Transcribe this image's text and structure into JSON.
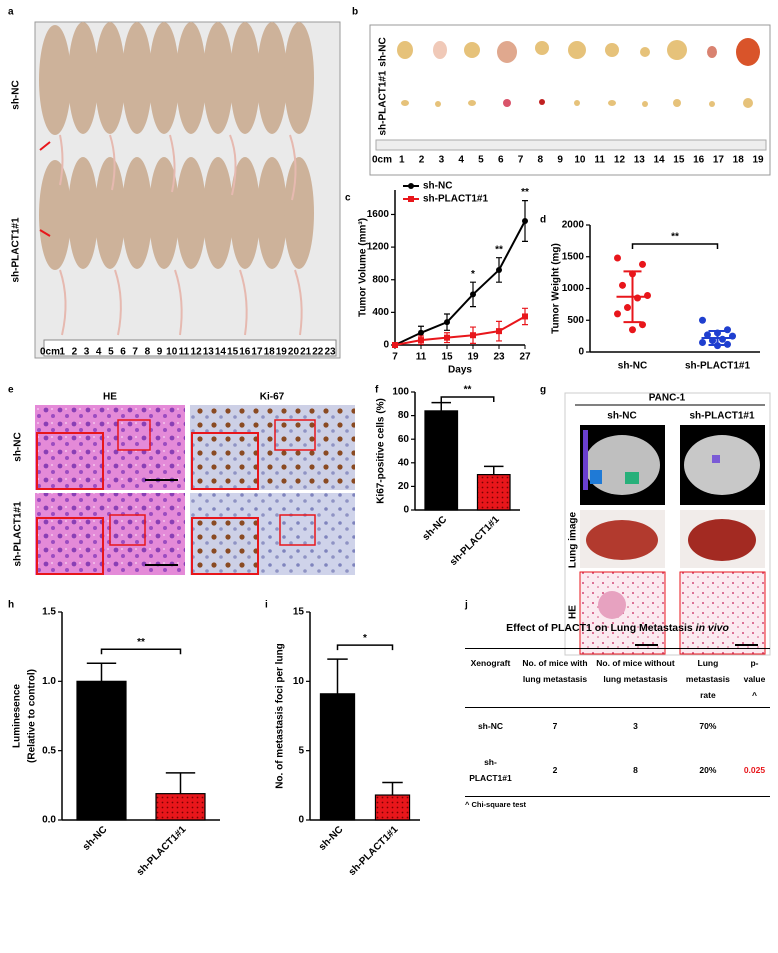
{
  "panel_labels": [
    "a",
    "b",
    "c",
    "d",
    "e",
    "f",
    "g",
    "h",
    "i",
    "j"
  ],
  "panel_a": {
    "groups": [
      "sh-NC",
      "sh-PLACT1#1"
    ],
    "ruler": [
      "0cm",
      "1",
      "2",
      "3",
      "4",
      "5",
      "6",
      "7",
      "8",
      "9",
      "10",
      "11",
      "12",
      "13",
      "14",
      "15",
      "16",
      "17",
      "18",
      "19",
      "20",
      "21",
      "22",
      "23"
    ]
  },
  "panel_b": {
    "groups": [
      "sh-NC",
      "sh-PLACT1#1"
    ],
    "ruler": [
      "0cm",
      "1",
      "2",
      "3",
      "4",
      "5",
      "6",
      "7",
      "8",
      "9",
      "10",
      "11",
      "12",
      "13",
      "14",
      "15",
      "16",
      "17",
      "18",
      "19"
    ]
  },
  "panel_e": {
    "columns": [
      "HE",
      "Ki-67"
    ],
    "groups": [
      "sh-NC",
      "sh-PLACT1#1"
    ]
  },
  "panel_g": {
    "title": "PANC-1",
    "columns": [
      "sh-NC",
      "sh-PLACT1#1"
    ],
    "rows": [
      "Lung image",
      "HE"
    ]
  },
  "chart_data": [
    {
      "type": "line",
      "xlabel": "Days",
      "ylabel": "Tumor Volume (mm³)",
      "x": [
        7,
        11,
        15,
        19,
        23,
        27
      ],
      "xlim": [
        7,
        27
      ],
      "xticks": [
        7,
        11,
        15,
        19,
        23,
        27
      ],
      "ylim": [
        0,
        1900
      ],
      "yticks": [
        0,
        400,
        800,
        1200,
        1600
      ],
      "legend": "upper left",
      "series": [
        {
          "name": "sh-NC",
          "color": "#000000",
          "marker": "circle",
          "values": [
            0,
            150,
            280,
            620,
            920,
            1520
          ],
          "errors": [
            0,
            80,
            100,
            150,
            150,
            250
          ]
        },
        {
          "name": "sh-PLACT1#1",
          "color": "#e8161b",
          "marker": "square",
          "values": [
            0,
            60,
            90,
            120,
            170,
            350
          ],
          "errors": [
            0,
            50,
            60,
            100,
            120,
            100
          ]
        }
      ],
      "annotations": [
        {
          "x": 19,
          "text": "*"
        },
        {
          "x": 23,
          "text": "**"
        },
        {
          "x": 27,
          "text": "**"
        }
      ]
    },
    {
      "type": "strip",
      "ylabel": "Tumor Weight (mg)",
      "categories": [
        "sh-NC",
        "sh-PLACT1#1"
      ],
      "ylim": [
        0,
        2000
      ],
      "yticks": [
        0,
        500,
        1000,
        1500,
        2000
      ],
      "groups": [
        {
          "color": "#e8161b",
          "values": [
            1480,
            1380,
            1230,
            1050,
            890,
            850,
            700,
            600,
            430,
            350
          ],
          "mean": 870,
          "sd": 400
        },
        {
          "color": "#1f3fcf",
          "values": [
            500,
            350,
            300,
            270,
            250,
            200,
            180,
            150,
            120,
            100
          ],
          "mean": 220,
          "sd": 110
        }
      ],
      "annotation": "**"
    },
    {
      "type": "bar",
      "ylabel": "Ki67-positive cells (%)",
      "categories": [
        "sh-NC",
        "sh-PLACT1#1"
      ],
      "values": [
        84,
        30
      ],
      "errors": [
        7,
        7
      ],
      "colors": [
        "#000000",
        "#e8161b"
      ],
      "ylim": [
        0,
        100
      ],
      "yticks": [
        0,
        20,
        40,
        60,
        80,
        100
      ],
      "annotation": "**"
    },
    {
      "type": "bar",
      "ylabel": [
        "Luminesence",
        "(Relative to control)"
      ],
      "categories": [
        "sh-NC",
        "sh-PLACT1#1"
      ],
      "values": [
        1.0,
        0.19
      ],
      "errors": [
        0.13,
        0.15
      ],
      "colors": [
        "#000000",
        "#e8161b"
      ],
      "ylim": [
        0,
        1.5
      ],
      "yticks": [
        {
          "value": 0,
          "label": "0.0"
        },
        {
          "value": 0.5,
          "label": "0.5"
        },
        {
          "value": 1,
          "label": "1.0"
        },
        {
          "value": 1.5,
          "label": "1.5"
        }
      ],
      "annotation": "**"
    },
    {
      "type": "bar",
      "ylabel": "No. of metastasis foci per lung",
      "categories": [
        "sh-NC",
        "sh-PLACT1#1"
      ],
      "values": [
        9.1,
        1.8
      ],
      "errors": [
        2.5,
        0.9
      ],
      "colors": [
        "#000000",
        "#e8161b"
      ],
      "ylim": [
        0,
        15
      ],
      "yticks": [
        0,
        5,
        10,
        15
      ],
      "annotation": "*"
    }
  ],
  "table": {
    "title": "Effect of PLACT1 on Lung Metastasis",
    "title_italic": "in vivo",
    "headers": [
      "Xenograft",
      "No. of mice with lung metastasis",
      "No. of mice without lung metastasis",
      "Lung metastasis rate",
      "p-value ^"
    ],
    "rows": [
      [
        "sh-NC",
        "7",
        "3",
        "70%",
        ""
      ],
      [
        "sh-PLACT1#1",
        "2",
        "8",
        "20%",
        "0.025"
      ]
    ],
    "footnote": "^ Chi-square test"
  }
}
